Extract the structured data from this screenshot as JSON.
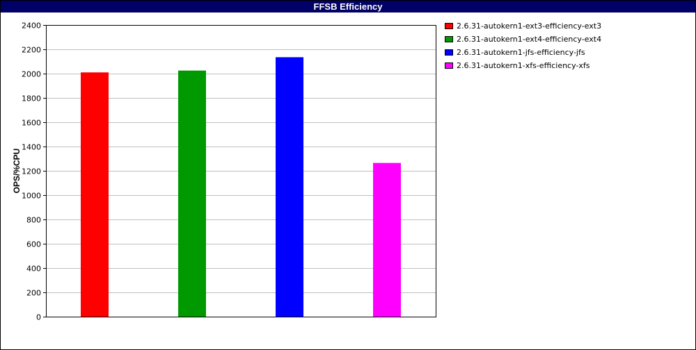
{
  "chart_data": {
    "type": "bar",
    "title": "FFSB Efficiency",
    "xlabel": "",
    "ylabel": "OPS/%CPU",
    "ylim": [
      0,
      2400
    ],
    "yticks": [
      0,
      200,
      400,
      600,
      800,
      1000,
      1200,
      1400,
      1600,
      1800,
      2000,
      2200,
      2400
    ],
    "grid": true,
    "legend_position": "right",
    "series": [
      {
        "name": "2.6.31-autokern1-ext3-efficiency-ext3",
        "value": 2010,
        "color": "#ff0000"
      },
      {
        "name": "2.6.31-autokern1-ext4-efficiency-ext4",
        "value": 2025,
        "color": "#009900"
      },
      {
        "name": "2.6.31-autokern1-jfs-efficiency-jfs",
        "value": 2135,
        "color": "#0000ff"
      },
      {
        "name": "2.6.31-autokern1-xfs-efficiency-xfs",
        "value": 1265,
        "color": "#ff00ff"
      }
    ]
  }
}
